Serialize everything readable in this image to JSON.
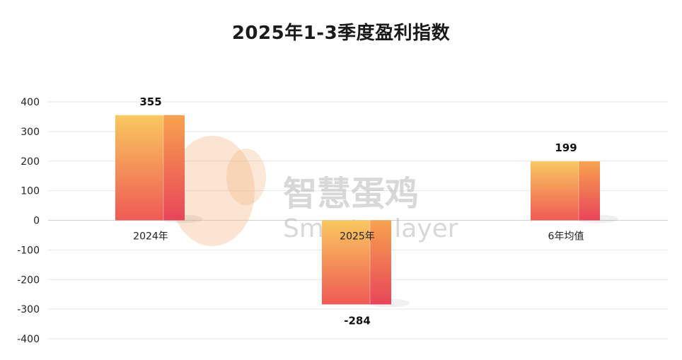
{
  "chart_data": {
    "type": "bar",
    "title": "2025年1-3季度盈利指数",
    "categories": [
      "2024年",
      "2025年",
      "6年均值"
    ],
    "values": [
      355,
      -284,
      199
    ],
    "ylim": [
      -400,
      400
    ],
    "yticks": [
      400,
      300,
      200,
      100,
      0,
      -100,
      -200,
      -300,
      -400
    ],
    "grid": true,
    "xlabel": "",
    "ylabel": "",
    "colors": {
      "bar_top": "#f9c85f",
      "bar_bottom": "#ef5a55",
      "side_top": "#f7a24e",
      "side_bottom": "#e8455a"
    }
  },
  "watermark": {
    "text": "智慧蛋鸡",
    "subtext": "Smarter layer"
  }
}
